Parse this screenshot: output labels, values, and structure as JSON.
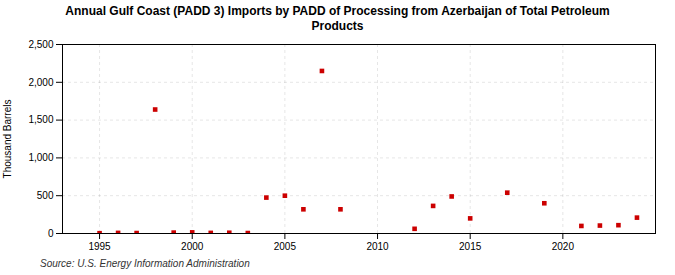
{
  "chart_data": {
    "type": "scatter",
    "title": "Annual Gulf Coast (PADD 3) Imports by PADD of Processing from Azerbaijan of Total Petroleum\nProducts",
    "y_label": "Thousand Barrels",
    "annotations": [
      "Source: U.S. Energy Information Administration"
    ],
    "x": [
      1995,
      1996,
      1997,
      1998,
      1999,
      2000,
      2001,
      2002,
      2003,
      2004,
      2005,
      2006,
      2007,
      2008,
      2012,
      2013,
      2014,
      2015,
      2017,
      2019,
      2021,
      2022,
      2023,
      2024
    ],
    "values": [
      4,
      8,
      6,
      1640,
      12,
      15,
      8,
      10,
      6,
      475,
      500,
      320,
      2150,
      320,
      62,
      365,
      490,
      200,
      540,
      400,
      100,
      105,
      110,
      210
    ],
    "color": "#cc0000",
    "marker": "square",
    "xlim": [
      1993,
      2025
    ],
    "xticks": [
      1995,
      2000,
      2005,
      2010,
      2015,
      2020
    ],
    "ylim": [
      0,
      2500
    ],
    "yticks": [
      0,
      500,
      {
        "value": 1000,
        "label": "1,000"
      },
      {
        "value": 1500,
        "label": "1,500"
      },
      {
        "value": 2000,
        "label": "2,000"
      },
      {
        "value": 2500,
        "label": "2,500"
      }
    ],
    "grid": true
  }
}
